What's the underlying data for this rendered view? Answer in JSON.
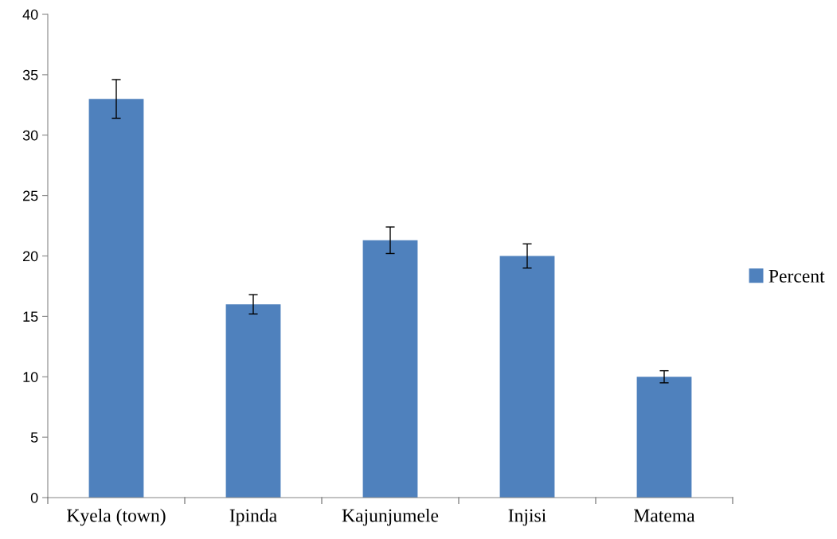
{
  "chart_data": {
    "type": "bar",
    "categories": [
      "Kyela (town)",
      "Ipinda",
      "Kajunjumele",
      "Injisi",
      "Matema"
    ],
    "series": [
      {
        "name": "Percent",
        "color": "#4f81bd",
        "values": [
          33.0,
          16.0,
          21.3,
          20.0,
          10.0
        ],
        "errors": [
          1.6,
          0.8,
          1.1,
          1.0,
          0.5
        ]
      }
    ],
    "ylim": [
      0,
      40
    ],
    "yticks": [
      0,
      5,
      10,
      15,
      20,
      25,
      30,
      35,
      40
    ],
    "grid": false,
    "legend": "right"
  }
}
